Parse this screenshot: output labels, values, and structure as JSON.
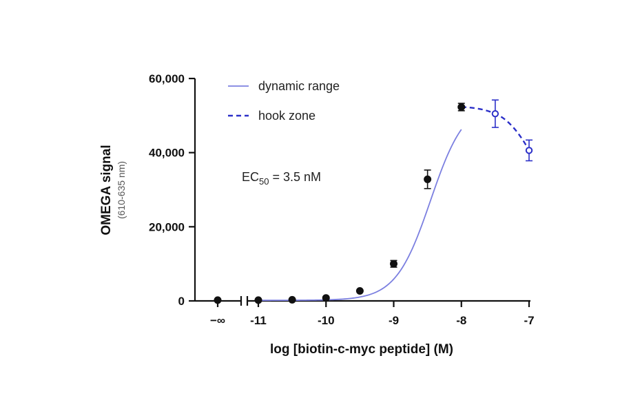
{
  "chart_data": {
    "type": "scatter",
    "xlabel": "log [biotin-c-myc peptide] (M)",
    "ylabel": "OMEGA signal",
    "ylabel_sub": "(610-635 nm)",
    "annotation": {
      "prefix": "EC",
      "subscript": "50",
      "suffix": " = 3.5 nM"
    },
    "xlim": [
      -11,
      -7
    ],
    "ylim": [
      0,
      60000
    ],
    "x_ticks": [
      {
        "value": "-inf",
        "label": "−∞"
      },
      {
        "value": -11,
        "label": "-11"
      },
      {
        "value": -10,
        "label": "-10"
      },
      {
        "value": -9,
        "label": "-9"
      },
      {
        "value": -8,
        "label": "-8"
      },
      {
        "value": -7,
        "label": "-7"
      }
    ],
    "y_ticks": [
      {
        "value": 0,
        "label": "0"
      },
      {
        "value": 20000,
        "label": "20,000"
      },
      {
        "value": 40000,
        "label": "40,000"
      },
      {
        "value": 60000,
        "label": "60,000"
      }
    ],
    "legend": [
      {
        "label": "dynamic range",
        "style": "solid"
      },
      {
        "label": "hook zone",
        "style": "dashed"
      }
    ],
    "colors": {
      "fit": "#7b7fe0",
      "hook": "#2b2fc8",
      "points": "#111111"
    },
    "series": [
      {
        "name": "dynamic range",
        "marker": "filled",
        "points": [
          {
            "x": "-inf",
            "y": 200,
            "err": 300
          },
          {
            "x": -11,
            "y": 200,
            "err": 300
          },
          {
            "x": -10.5,
            "y": 300,
            "err": 300
          },
          {
            "x": -10,
            "y": 800,
            "err": 400
          },
          {
            "x": -9.5,
            "y": 2700,
            "err": 500
          },
          {
            "x": -9,
            "y": 10000,
            "err": 900
          },
          {
            "x": -8.5,
            "y": 32800,
            "err": 2500
          },
          {
            "x": -8,
            "y": 52300,
            "err": 1000
          }
        ]
      },
      {
        "name": "hook zone",
        "marker": "open",
        "points": [
          {
            "x": -7.5,
            "y": 50500,
            "err": 3700
          },
          {
            "x": -7,
            "y": 40600,
            "err": 2800
          }
        ]
      }
    ],
    "fit": {
      "bottom": 150,
      "top": 54000,
      "log_ec50": -8.456,
      "hill": 1.7,
      "x_from": -11,
      "x_to": -8
    }
  }
}
